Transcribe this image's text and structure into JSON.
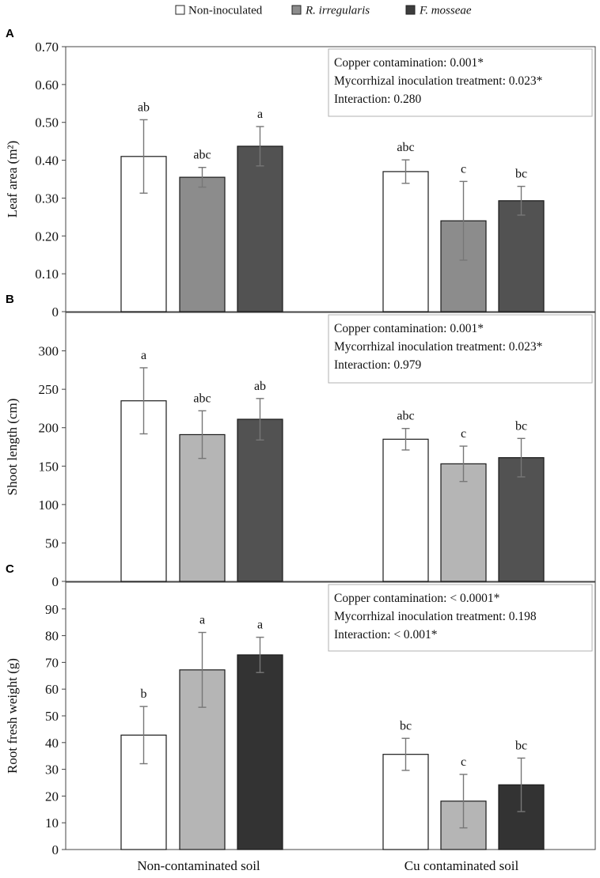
{
  "legend": [
    {
      "label": "Non-inoculated",
      "italic": false,
      "color": "#ffffff"
    },
    {
      "label": "R. irregularis",
      "italic": true,
      "color": "#8c8c8c"
    },
    {
      "label": "F. mosseae",
      "italic": true,
      "color": "#3d3d3d"
    }
  ],
  "chart_data": [
    {
      "panel": "A",
      "type": "bar",
      "ylabel": "Leaf area (m²)",
      "ylim": [
        0,
        0.7
      ],
      "yticks": [
        "0",
        "0.10",
        "0.20",
        "0.30",
        "0.40",
        "0.50",
        "0.60",
        "0.70"
      ],
      "categories": [
        "Non-contaminated soil",
        "Cu contaminated soil"
      ],
      "series": [
        {
          "name": "Non-inoculated",
          "color": "#ffffff",
          "values": [
            0.41,
            0.37
          ],
          "errors": [
            0.097,
            0.031
          ],
          "letters": [
            "ab",
            "abc"
          ]
        },
        {
          "name": "R. irregularis",
          "color": "#8c8c8c",
          "values": [
            0.355,
            0.24
          ],
          "errors": [
            0.026,
            0.104
          ],
          "letters": [
            "abc",
            "c"
          ]
        },
        {
          "name": "F. mosseae",
          "color": "#525252",
          "values": [
            0.437,
            0.293
          ],
          "errors": [
            0.052,
            0.038
          ],
          "letters": [
            "a",
            "bc"
          ]
        }
      ],
      "stats": [
        "Copper contamination: 0.001*",
        "Mycorrhizal inoculation treatment: 0.023*",
        "Interaction: 0.280"
      ]
    },
    {
      "panel": "B",
      "type": "bar",
      "ylabel": "Shoot length (cm)",
      "ylim": [
        0,
        350
      ],
      "yticks": [
        "0",
        "50",
        "100",
        "150",
        "200",
        "250",
        "300"
      ],
      "categories": [
        "Non-contaminated soil",
        "Cu contaminated soil"
      ],
      "series": [
        {
          "name": "Non-inoculated",
          "color": "#ffffff",
          "values": [
            235,
            185
          ],
          "errors": [
            43,
            14
          ],
          "letters": [
            "a",
            "abc"
          ]
        },
        {
          "name": "R. irregularis",
          "color": "#b5b5b5",
          "values": [
            191,
            153
          ],
          "errors": [
            31,
            23
          ],
          "letters": [
            "abc",
            "c"
          ]
        },
        {
          "name": "F. mosseae",
          "color": "#525252",
          "values": [
            211,
            161
          ],
          "errors": [
            27,
            25
          ],
          "letters": [
            "ab",
            "bc"
          ]
        }
      ],
      "stats": [
        "Copper contamination: 0.001*",
        "Mycorrhizal inoculation treatment: 0.023*",
        "Interaction: 0.979"
      ]
    },
    {
      "panel": "C",
      "type": "bar",
      "ylabel": "Root fresh weight (g)",
      "ylim": [
        0,
        100
      ],
      "yticks": [
        "0",
        "10",
        "20",
        "30",
        "40",
        "50",
        "60",
        "70",
        "80",
        "90"
      ],
      "categories": [
        "Non-contaminated soil",
        "Cu contaminated soil"
      ],
      "series": [
        {
          "name": "Non-inoculated",
          "color": "#ffffff",
          "values": [
            42.8,
            35.6
          ],
          "errors": [
            10.7,
            6
          ],
          "letters": [
            "b",
            "bc"
          ]
        },
        {
          "name": "R. irregularis",
          "color": "#b5b5b5",
          "values": [
            67.2,
            18.1
          ],
          "errors": [
            14,
            10
          ],
          "letters": [
            "a",
            "c"
          ]
        },
        {
          "name": "F. mosseae",
          "color": "#333333",
          "values": [
            72.8,
            24.2
          ],
          "errors": [
            6.6,
            10
          ],
          "letters": [
            "a",
            "bc"
          ]
        }
      ],
      "stats": [
        "Copper contamination: < 0.0001*",
        "Mycorrhizal inoculation treatment: 0.198",
        "Interaction: < 0.001*"
      ]
    }
  ]
}
